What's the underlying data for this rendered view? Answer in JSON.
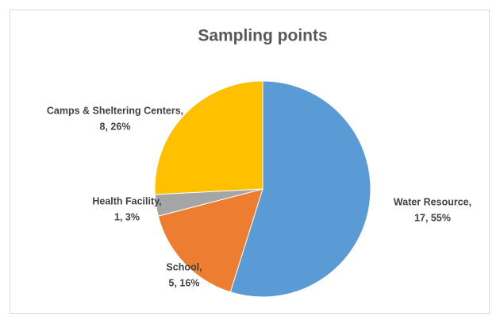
{
  "chart_data": {
    "type": "pie",
    "title": "Sampling points",
    "values": [
      17,
      5,
      1,
      8
    ],
    "value_labels": [
      [
        "Water Resource,",
        "17, 55%"
      ],
      [
        "School,",
        "5, 16%"
      ],
      [
        "Health Facility,",
        "1, 3%"
      ],
      [
        "Camps & Sheltering Centers,",
        "8, 26%"
      ]
    ],
    "colors": [
      "#5b9bd5",
      "#ed7d31",
      "#a5a5a5",
      "#ffc000"
    ]
  }
}
